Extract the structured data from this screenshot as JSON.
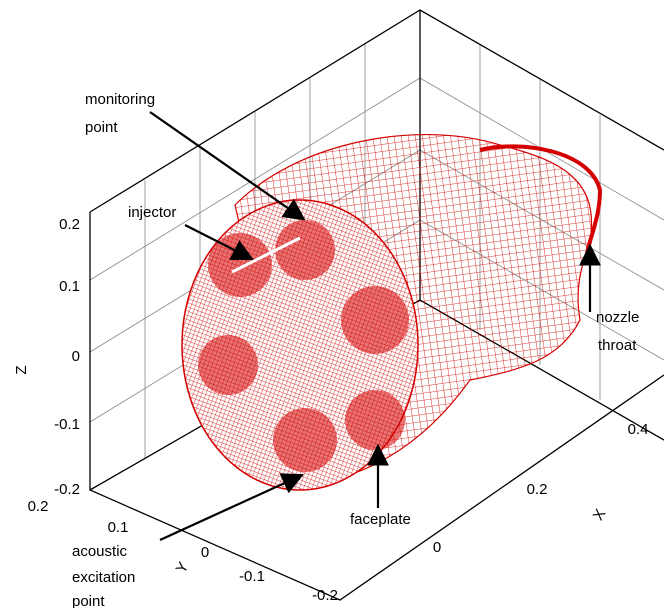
{
  "annotations": {
    "monitoring": [
      "monitoring",
      "point"
    ],
    "injector": "injector",
    "nozzle": [
      "nozzle",
      "throat"
    ],
    "faceplate": "faceplate",
    "excitation": [
      "acoustic",
      "excitation",
      "point"
    ]
  },
  "axes": {
    "z": {
      "label": "Z",
      "ticks": [
        "0.2",
        "0.1",
        "0",
        "-0.1",
        "-0.2"
      ]
    },
    "y": {
      "label": "Y",
      "ticks": [
        "0.2",
        "0.1",
        "0",
        "-0.1",
        "-0.2"
      ]
    },
    "x": {
      "label": "X",
      "ticks": [
        "0",
        "0.2",
        "0.4"
      ]
    }
  }
}
